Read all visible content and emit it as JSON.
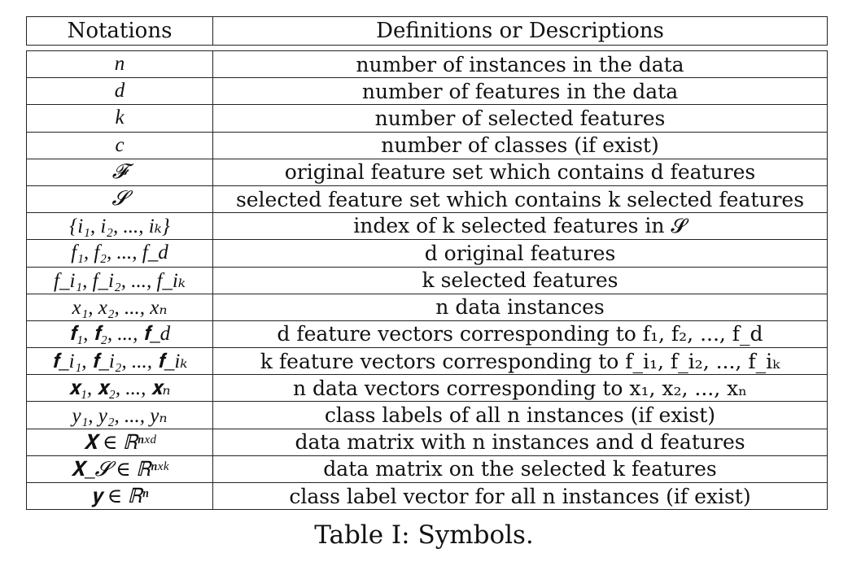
{
  "table": {
    "headers": [
      "Notations",
      "Definitions or Descriptions"
    ],
    "rows": [
      {
        "notation": "n",
        "description": "number of instances in the data"
      },
      {
        "notation": "d",
        "description": "number of features in the data"
      },
      {
        "notation": "k",
        "description": "number of selected features"
      },
      {
        "notation": "c",
        "description": "number of classes (if exist)"
      },
      {
        "notation": "𝓕",
        "description": "original feature set which contains d features"
      },
      {
        "notation": "𝓢",
        "description": "selected feature set which contains k selected features"
      },
      {
        "notation": "{i₁, i₂, ..., iₖ}",
        "description": "index of k selected features in 𝓢"
      },
      {
        "notation": "f₁, f₂, ..., f_d",
        "description": "d original features"
      },
      {
        "notation": "f_i₁, f_i₂, ..., f_iₖ",
        "description": "k selected features"
      },
      {
        "notation": "x₁, x₂, ..., xₙ",
        "description": "n data instances"
      },
      {
        "notation": "𝐟₁, 𝐟₂, ..., 𝐟_d",
        "description": "d feature vectors corresponding to f₁, f₂, ..., f_d"
      },
      {
        "notation": "𝐟_i₁, 𝐟_i₂, ..., 𝐟_iₖ",
        "description": "k feature vectors corresponding to f_i₁, f_i₂, ..., f_iₖ"
      },
      {
        "notation": "𝐱₁, 𝐱₂, ..., 𝐱ₙ",
        "description": "n data vectors corresponding to x₁, x₂, ..., xₙ"
      },
      {
        "notation": "y₁, y₂, ..., yₙ",
        "description": "class labels of all n instances (if exist)"
      },
      {
        "notation": "𝐗 ∈ ℝⁿˣᵈ",
        "description": "data matrix with n instances and d features"
      },
      {
        "notation": "𝐗_𝓢 ∈ ℝⁿˣᵏ",
        "description": "data matrix on the selected k features"
      },
      {
        "notation": "𝐲 ∈ ℝⁿ",
        "description": "class label vector for all n instances (if exist)"
      }
    ]
  },
  "caption": "Table I: Symbols."
}
